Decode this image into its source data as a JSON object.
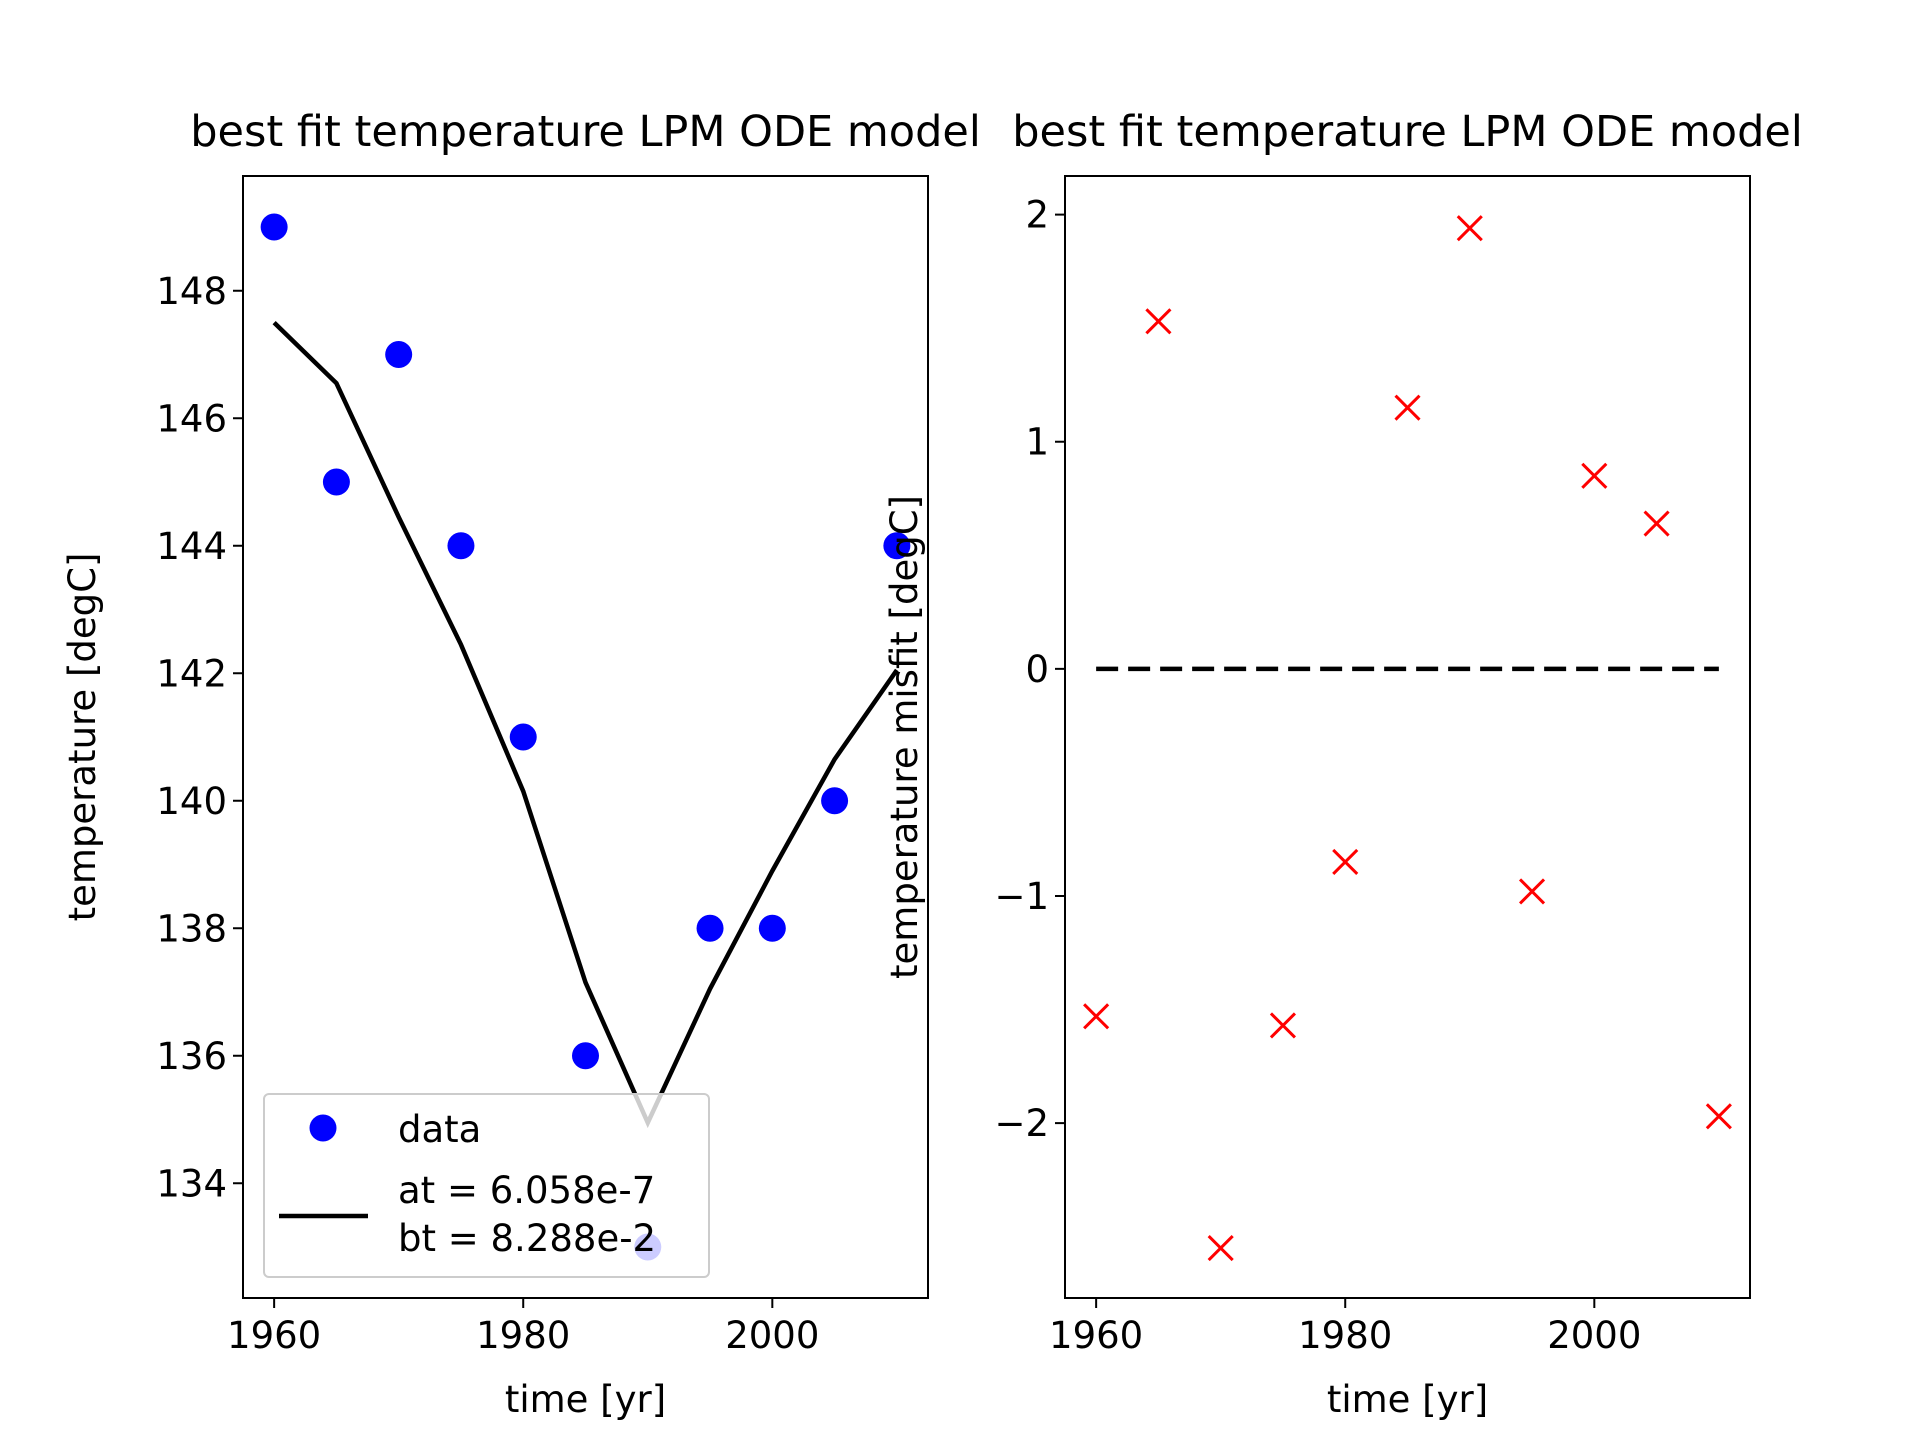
{
  "chart_data": [
    {
      "type": "scatter",
      "title": "best fit temperature LPM ODE model",
      "xlabel": "time [yr]",
      "ylabel": "temperature [degC]",
      "xlim": [
        1957.5,
        2012.5
      ],
      "ylim": [
        132.2,
        149.8
      ],
      "xticks": [
        1960,
        1980,
        2000
      ],
      "yticks": [
        134,
        136,
        138,
        140,
        142,
        144,
        146,
        148
      ],
      "legend_position": "lower-left",
      "series": [
        {
          "name": "data",
          "kind": "scatter",
          "marker": "circle",
          "color": "#0000ff",
          "x": [
            1960,
            1965,
            1970,
            1975,
            1980,
            1985,
            1990,
            1995,
            2000,
            2005,
            2010
          ],
          "y": [
            149,
            145,
            147,
            144,
            141,
            136,
            133,
            138,
            138,
            140,
            144
          ]
        },
        {
          "name": "at = 6.058e-7\nbt = 8.288e-2",
          "legend_lines": [
            "at = 6.058e-7",
            "bt = 8.288e-2"
          ],
          "kind": "line",
          "color": "#000000",
          "x": [
            1960,
            1965,
            1970,
            1975,
            1980,
            1985,
            1990,
            1995,
            2000,
            2005,
            2010
          ],
          "y": [
            147.5,
            146.55,
            144.45,
            142.45,
            140.15,
            137.15,
            134.95,
            137.05,
            138.9,
            140.65,
            142.05
          ]
        }
      ]
    },
    {
      "type": "scatter",
      "title": "best fit temperature LPM ODE model",
      "xlabel": "time [yr]",
      "ylabel": "temperature misfit [degC]",
      "xlim": [
        1957.5,
        2012.5
      ],
      "ylim": [
        -2.77,
        2.17
      ],
      "xticks": [
        1960,
        1980,
        2000
      ],
      "yticks": [
        -2,
        -1,
        0,
        1,
        2
      ],
      "ytick_labels": [
        "−2",
        "−1",
        "0",
        "1",
        "2"
      ],
      "series": [
        {
          "kind": "scatter",
          "marker": "x",
          "color": "#ff0000",
          "x": [
            1960,
            1965,
            1970,
            1975,
            1980,
            1985,
            1990,
            1995,
            2000,
            2005,
            2010
          ],
          "y": [
            -1.53,
            1.53,
            -2.55,
            -1.57,
            -0.85,
            1.15,
            1.94,
            -0.98,
            0.85,
            0.64,
            -1.97
          ]
        },
        {
          "kind": "line",
          "style": "dashed",
          "color": "#000000",
          "x": [
            1960,
            2010
          ],
          "y": [
            0,
            0
          ]
        }
      ]
    }
  ]
}
